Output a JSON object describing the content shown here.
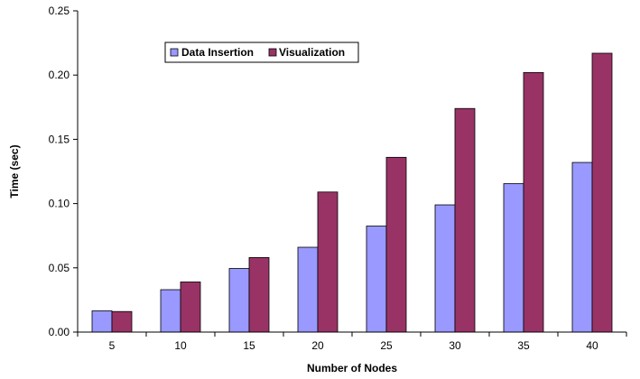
{
  "chart_data": {
    "type": "bar",
    "title": "",
    "xlabel": "Number of Nodes",
    "ylabel": "Time (sec)",
    "ylim": [
      0,
      0.25
    ],
    "yticks": [
      "0.00",
      "0.05",
      "0.10",
      "0.15",
      "0.20",
      "0.25"
    ],
    "grid": false,
    "legend_position": "top-left",
    "categories": [
      "5",
      "10",
      "15",
      "20",
      "25",
      "30",
      "35",
      "40"
    ],
    "series": [
      {
        "name": "Data Insertion",
        "color": "#9999FF",
        "values": [
          0.0165,
          0.033,
          0.0495,
          0.066,
          0.0825,
          0.099,
          0.1155,
          0.132
        ]
      },
      {
        "name": "Visualization",
        "color": "#993366",
        "values": [
          0.016,
          0.039,
          0.058,
          0.109,
          0.136,
          0.174,
          0.202,
          0.217
        ]
      }
    ]
  }
}
